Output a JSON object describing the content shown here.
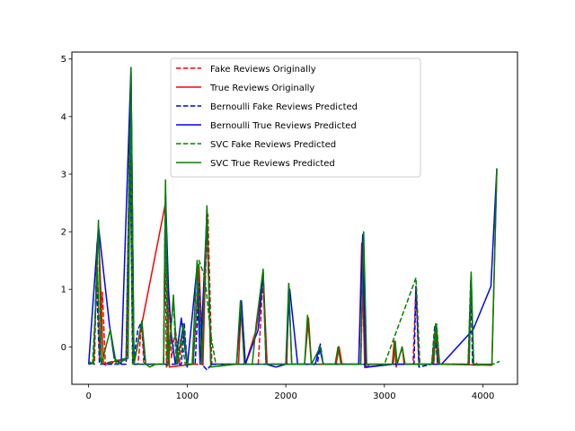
{
  "chart_data": {
    "type": "line",
    "title": "",
    "xlabel": "",
    "ylabel": "",
    "xlim": [
      -170,
      4350
    ],
    "ylim": [
      -0.65,
      5.12
    ],
    "x_ticks": [
      0,
      1000,
      2000,
      3000,
      4000
    ],
    "y_ticks": [
      0,
      1,
      2,
      3,
      4,
      5
    ],
    "grid": false,
    "legend_position": "top-center",
    "series": [
      {
        "name": "Fake Reviews Originally",
        "color": "#ff0000",
        "dash": "dashed",
        "points": [
          [
            20,
            -0.28
          ],
          [
            60,
            -0.3
          ],
          [
            85,
            1.8
          ],
          [
            110,
            -0.2
          ],
          [
            140,
            0.95
          ],
          [
            170,
            -0.32
          ],
          [
            390,
            -0.2
          ],
          [
            420,
            4.0
          ],
          [
            445,
            -0.3
          ],
          [
            500,
            -0.3
          ],
          [
            540,
            0.4
          ],
          [
            560,
            -0.3
          ],
          [
            760,
            -0.3
          ],
          [
            775,
            2.05
          ],
          [
            790,
            -0.35
          ],
          [
            820,
            0.8
          ],
          [
            840,
            -0.2
          ],
          [
            880,
            0.3
          ],
          [
            920,
            -0.3
          ],
          [
            960,
            0.4
          ],
          [
            1000,
            -0.3
          ],
          [
            1150,
            -0.3
          ],
          [
            1210,
            2.3
          ],
          [
            1250,
            -0.3
          ],
          [
            1720,
            -0.3
          ],
          [
            1770,
            1.2
          ],
          [
            1800,
            -0.3
          ],
          [
            2760,
            -0.3
          ],
          [
            2790,
            1.7
          ],
          [
            2810,
            -0.36
          ],
          [
            2850,
            -0.3
          ],
          [
            3290,
            -0.3
          ],
          [
            3320,
            1.05
          ],
          [
            3350,
            -0.3
          ],
          [
            3500,
            -0.3
          ],
          [
            3520,
            0.3
          ],
          [
            3540,
            -0.3
          ],
          [
            3860,
            -0.3
          ],
          [
            3880,
            1.1
          ],
          [
            3905,
            -0.32
          ],
          [
            3940,
            -0.28
          ]
        ]
      },
      {
        "name": "True Reviews Originally",
        "color": "#ff0000",
        "dash": "solid",
        "points": [
          [
            50,
            -0.3
          ],
          [
            100,
            2.1
          ],
          [
            150,
            -0.3
          ],
          [
            380,
            -0.2
          ],
          [
            430,
            4.8
          ],
          [
            460,
            -0.3
          ],
          [
            780,
            2.5
          ],
          [
            820,
            -0.35
          ],
          [
            1060,
            -0.3
          ],
          [
            1120,
            1.4
          ],
          [
            1160,
            -0.32
          ],
          [
            1200,
            2.4
          ],
          [
            1240,
            -0.3
          ],
          [
            1520,
            -0.3
          ],
          [
            1550,
            0.8
          ],
          [
            1590,
            -0.3
          ],
          [
            1700,
            0.3
          ],
          [
            1770,
            1.3
          ],
          [
            1810,
            -0.3
          ],
          [
            2010,
            -0.3
          ],
          [
            2030,
            1.1
          ],
          [
            2060,
            -0.3
          ],
          [
            2190,
            -0.3
          ],
          [
            2230,
            0.5
          ],
          [
            2260,
            -0.3
          ],
          [
            2510,
            -0.3
          ],
          [
            2540,
            0.0
          ],
          [
            2570,
            -0.3
          ],
          [
            2740,
            -0.3
          ],
          [
            2770,
            1.8
          ],
          [
            2800,
            -0.36
          ],
          [
            3080,
            -0.3
          ],
          [
            3100,
            0.1
          ],
          [
            3120,
            -0.35
          ],
          [
            3180,
            0.0
          ],
          [
            3200,
            -0.3
          ],
          [
            3490,
            -0.3
          ],
          [
            3530,
            0.3
          ],
          [
            3560,
            -0.3
          ],
          [
            4090,
            -0.32
          ],
          [
            4140,
            3.05
          ]
        ]
      },
      {
        "name": "Bernoulli Fake Reviews Predicted",
        "color": "#0000ff",
        "dash": "dashed",
        "points": [
          [
            0,
            -0.3
          ],
          [
            50,
            -0.28
          ],
          [
            80,
            1.2
          ],
          [
            110,
            -0.3
          ],
          [
            380,
            -0.3
          ],
          [
            420,
            3.9
          ],
          [
            450,
            -0.3
          ],
          [
            500,
            0.3
          ],
          [
            540,
            0.45
          ],
          [
            570,
            -0.3
          ],
          [
            940,
            -0.3
          ],
          [
            970,
            0.4
          ],
          [
            1000,
            -0.3
          ],
          [
            1080,
            -0.3
          ],
          [
            1120,
            1.1
          ],
          [
            1150,
            -0.3
          ],
          [
            1200,
            -0.4
          ],
          [
            1250,
            -0.3
          ],
          [
            2320,
            -0.3
          ],
          [
            2350,
            0.05
          ],
          [
            2380,
            -0.3
          ],
          [
            3300,
            -0.3
          ],
          [
            3320,
            1.05
          ],
          [
            3350,
            -0.35
          ],
          [
            3480,
            -0.3
          ],
          [
            3510,
            0.35
          ],
          [
            3540,
            -0.3
          ],
          [
            3850,
            -0.3
          ],
          [
            3875,
            1.15
          ],
          [
            3895,
            -0.32
          ],
          [
            3920,
            -0.3
          ]
        ]
      },
      {
        "name": "Bernoulli True Reviews Predicted",
        "color": "#0000ff",
        "dash": "solid",
        "points": [
          [
            0,
            -0.3
          ],
          [
            100,
            2.1
          ],
          [
            210,
            0.4
          ],
          [
            260,
            -0.2
          ],
          [
            330,
            -0.3
          ],
          [
            430,
            4.85
          ],
          [
            460,
            -0.3
          ],
          [
            760,
            -0.3
          ],
          [
            780,
            2.7
          ],
          [
            810,
            1.0
          ],
          [
            840,
            0.2
          ],
          [
            880,
            -0.3
          ],
          [
            940,
            0.5
          ],
          [
            1000,
            -0.35
          ],
          [
            1100,
            1.4
          ],
          [
            1130,
            -0.3
          ],
          [
            1200,
            2.3
          ],
          [
            1240,
            -0.3
          ],
          [
            1500,
            -0.3
          ],
          [
            1550,
            0.8
          ],
          [
            1590,
            -0.3
          ],
          [
            1720,
            0.3
          ],
          [
            1770,
            1.3
          ],
          [
            1800,
            -0.3
          ],
          [
            1900,
            -0.35
          ],
          [
            2000,
            -0.3
          ],
          [
            2040,
            1.0
          ],
          [
            2120,
            -0.3
          ],
          [
            2300,
            -0.3
          ],
          [
            2340,
            0.0
          ],
          [
            2380,
            -0.3
          ],
          [
            2740,
            -0.3
          ],
          [
            2780,
            1.95
          ],
          [
            2810,
            -0.35
          ],
          [
            3100,
            -0.3
          ],
          [
            3300,
            -0.3
          ],
          [
            3500,
            -0.3
          ],
          [
            3580,
            -0.3
          ],
          [
            3900,
            0.3
          ],
          [
            4080,
            1.05
          ],
          [
            4140,
            3.1
          ]
        ]
      },
      {
        "name": "SVC Fake Reviews Predicted",
        "color": "#008000",
        "dash": "dashed",
        "points": [
          [
            40,
            -0.3
          ],
          [
            90,
            1.3
          ],
          [
            120,
            -0.3
          ],
          [
            380,
            -0.2
          ],
          [
            420,
            3.8
          ],
          [
            450,
            -0.3
          ],
          [
            760,
            -0.3
          ],
          [
            780,
            2.2
          ],
          [
            800,
            -0.35
          ],
          [
            860,
            0.8
          ],
          [
            890,
            -0.3
          ],
          [
            940,
            0.2
          ],
          [
            980,
            -0.3
          ],
          [
            1060,
            -0.3
          ],
          [
            1120,
            1.5
          ],
          [
            1180,
            1.2
          ],
          [
            1240,
            0.2
          ],
          [
            1290,
            -0.3
          ],
          [
            2800,
            -0.3
          ],
          [
            2880,
            -0.3
          ],
          [
            3000,
            -0.3
          ],
          [
            3320,
            1.2
          ],
          [
            3360,
            -0.3
          ],
          [
            3500,
            -0.3
          ],
          [
            3530,
            0.4
          ],
          [
            3560,
            -0.3
          ],
          [
            3860,
            -0.3
          ],
          [
            3880,
            1.25
          ],
          [
            3905,
            -0.32
          ],
          [
            4100,
            -0.3
          ],
          [
            4170,
            -0.25
          ]
        ]
      },
      {
        "name": "SVC True Reviews Predicted",
        "color": "#008000",
        "dash": "solid",
        "points": [
          [
            0,
            -0.25
          ],
          [
            50,
            -0.3
          ],
          [
            100,
            2.2
          ],
          [
            130,
            -0.3
          ],
          [
            220,
            0.3
          ],
          [
            280,
            -0.3
          ],
          [
            400,
            -0.2
          ],
          [
            430,
            4.85
          ],
          [
            460,
            -0.3
          ],
          [
            540,
            0.45
          ],
          [
            580,
            -0.3
          ],
          [
            620,
            -0.35
          ],
          [
            680,
            -0.3
          ],
          [
            760,
            -0.3
          ],
          [
            780,
            2.9
          ],
          [
            810,
            -0.3
          ],
          [
            860,
            0.9
          ],
          [
            900,
            -0.3
          ],
          [
            960,
            0.4
          ],
          [
            1000,
            -0.3
          ],
          [
            1050,
            -0.3
          ],
          [
            1100,
            1.5
          ],
          [
            1150,
            -0.3
          ],
          [
            1200,
            2.45
          ],
          [
            1240,
            -0.35
          ],
          [
            1500,
            -0.3
          ],
          [
            1540,
            0.8
          ],
          [
            1580,
            -0.3
          ],
          [
            1660,
            -0.3
          ],
          [
            1700,
            0.4
          ],
          [
            1770,
            1.35
          ],
          [
            1800,
            -0.3
          ],
          [
            2000,
            -0.3
          ],
          [
            2030,
            1.1
          ],
          [
            2060,
            -0.3
          ],
          [
            2190,
            -0.3
          ],
          [
            2220,
            0.55
          ],
          [
            2260,
            -0.3
          ],
          [
            2350,
            0.0
          ],
          [
            2380,
            -0.3
          ],
          [
            2500,
            -0.3
          ],
          [
            2530,
            0.0
          ],
          [
            2560,
            -0.3
          ],
          [
            2760,
            -0.3
          ],
          [
            2790,
            2.0
          ],
          [
            2820,
            -0.3
          ],
          [
            3090,
            -0.3
          ],
          [
            3110,
            0.1
          ],
          [
            3130,
            -0.3
          ],
          [
            3180,
            0.0
          ],
          [
            3210,
            -0.3
          ],
          [
            3480,
            -0.3
          ],
          [
            3520,
            0.4
          ],
          [
            3550,
            -0.3
          ],
          [
            3850,
            -0.3
          ],
          [
            3880,
            1.3
          ],
          [
            3905,
            -0.3
          ],
          [
            4090,
            -0.3
          ],
          [
            4140,
            3.1
          ]
        ]
      }
    ]
  }
}
